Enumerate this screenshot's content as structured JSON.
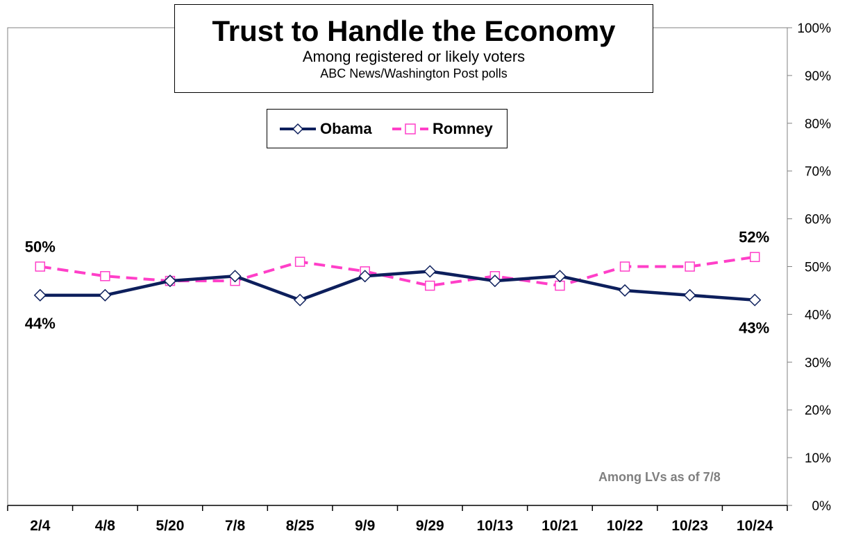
{
  "chart_data": {
    "type": "line",
    "title": "Trust to Handle the Economy",
    "subtitle": "Among registered or likely voters",
    "source": "ABC News/Washington  Post polls",
    "note": "Among LVs as of 7/8",
    "categories": [
      "2/4",
      "4/8",
      "5/20",
      "7/8",
      "8/25",
      "9/9",
      "9/29",
      "10/13",
      "10/21",
      "10/22",
      "10/23",
      "10/24"
    ],
    "y_ticks": [
      "0%",
      "10%",
      "20%",
      "30%",
      "40%",
      "50%",
      "60%",
      "70%",
      "80%",
      "90%",
      "100%"
    ],
    "ylim": [
      0,
      100
    ],
    "y_axis_side": "right",
    "legend_position": "top-center",
    "grid": false,
    "series": [
      {
        "name": "Obama",
        "color": "#0d1f5c",
        "style": "solid",
        "marker": "diamond",
        "values": [
          44,
          44,
          47,
          48,
          43,
          48,
          49,
          47,
          48,
          45,
          44,
          43
        ],
        "labels": [
          "44%",
          "",
          "",
          "",
          "",
          "",
          "",
          "",
          "",
          "",
          "",
          "43%"
        ]
      },
      {
        "name": "Romney",
        "color": "#ff3fc8",
        "style": "dashed",
        "marker": "square",
        "values": [
          50,
          48,
          47,
          47,
          51,
          49,
          46,
          48,
          46,
          50,
          50,
          52
        ],
        "labels": [
          "50%",
          "",
          "",
          "",
          "",
          "",
          "",
          "",
          "",
          "",
          "",
          "52%"
        ]
      }
    ]
  }
}
